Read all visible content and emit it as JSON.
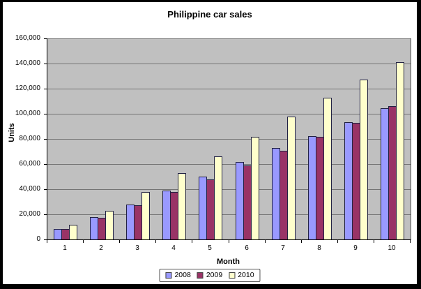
{
  "title": "Philippine car sales",
  "y_axis": {
    "label": "Units",
    "ticks": [
      "160,000",
      "140,000",
      "120,000",
      "100,000",
      "80,000",
      "60,000",
      "40,000",
      "20,000",
      "0"
    ]
  },
  "x_axis": {
    "label": "Month",
    "categories": [
      "1",
      "2",
      "3",
      "4",
      "5",
      "6",
      "7",
      "8",
      "9",
      "10"
    ]
  },
  "legend": {
    "position": "bottom",
    "items": [
      {
        "label": "2008",
        "color": "#9999FF"
      },
      {
        "label": "2009",
        "color": "#993366"
      },
      {
        "label": "2010",
        "color": "#FFFFCC"
      }
    ]
  },
  "colors": {
    "frame": "#000000",
    "chart_background": "#FFFFFF",
    "plot_background": "#C0C0C0",
    "gridline": "#747474",
    "axis": "#000000",
    "bar_border": "#222244"
  },
  "chart_data": {
    "type": "bar",
    "title": "Philippine car sales",
    "xlabel": "Month",
    "ylabel": "Units",
    "categories": [
      1,
      2,
      3,
      4,
      5,
      6,
      7,
      8,
      9,
      10
    ],
    "series": [
      {
        "name": "2008",
        "color": "#9999FF",
        "values": [
          8500,
          18000,
          27500,
          39000,
          50000,
          61500,
          72500,
          82000,
          93500,
          104500
        ]
      },
      {
        "name": "2009",
        "color": "#993366",
        "values": [
          8500,
          17000,
          27000,
          38000,
          48000,
          59000,
          70500,
          81500,
          93000,
          106000
        ]
      },
      {
        "name": "2010",
        "color": "#FFFFCC",
        "values": [
          11500,
          22500,
          38000,
          52500,
          66000,
          81500,
          98000,
          112500,
          127000,
          141000
        ]
      }
    ],
    "ylim": [
      0,
      160000
    ],
    "ytick_interval": 20000,
    "grid": true,
    "legend_position": "bottom",
    "plot_bg": "#C0C0C0"
  }
}
